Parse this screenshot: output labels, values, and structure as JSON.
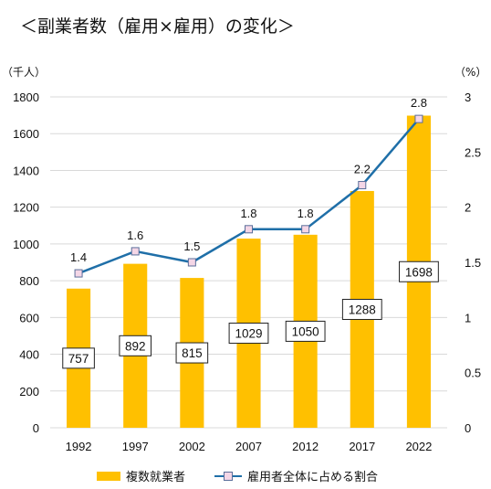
{
  "title": "＜副業者数（雇用×雇用）の変化＞",
  "left_unit": "（千人）",
  "right_unit": "（%）",
  "colors": {
    "bar": "#FFC000",
    "line": "#1F6FA8",
    "marker_fill": "#F4D6E6",
    "marker_stroke": "#5A6E9A",
    "grid": "#D9D9D9"
  },
  "chart_data": {
    "type": "bar",
    "categories": [
      "1992",
      "1997",
      "2002",
      "2007",
      "2012",
      "2017",
      "2022"
    ],
    "series": [
      {
        "name": "複数就業者",
        "type": "bar",
        "axis": "left",
        "values": [
          757,
          892,
          815,
          1029,
          1050,
          1288,
          1698
        ]
      },
      {
        "name": "雇用者全体に占める割合",
        "type": "line",
        "axis": "right",
        "values": [
          1.4,
          1.6,
          1.5,
          1.8,
          1.8,
          2.2,
          2.8
        ]
      }
    ],
    "ylim": [
      0,
      1800
    ],
    "yticks": [
      0,
      200,
      400,
      600,
      800,
      1000,
      1200,
      1400,
      1600,
      1800
    ],
    "y2lim": [
      0,
      3
    ],
    "y2ticks": [
      "0",
      "0.5",
      "1",
      "1.5",
      "2",
      "2.5",
      "3"
    ],
    "grid": true,
    "legend": "bottom"
  },
  "legend": {
    "bar_label": "複数就業者",
    "line_label": "雇用者全体に占める割合"
  }
}
